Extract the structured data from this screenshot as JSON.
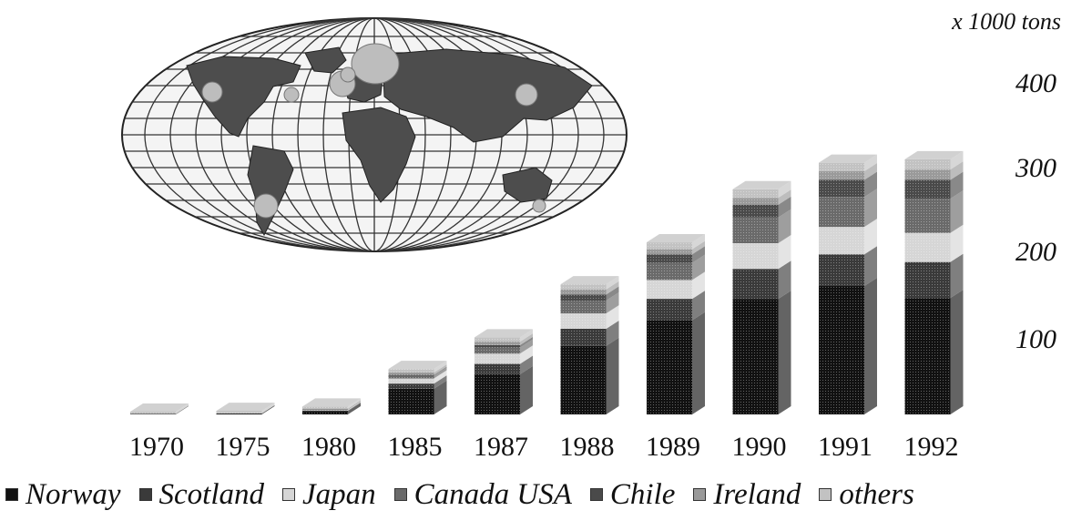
{
  "chart_data": {
    "type": "bar",
    "stacked": true,
    "unit_label": "x 1000 tons",
    "categories": [
      "1970",
      "1975",
      "1980",
      "1985",
      "1987",
      "1988",
      "1989",
      "1990",
      "1991",
      "1992"
    ],
    "y_ticks": [
      "100",
      "200",
      "300",
      "400"
    ],
    "ylim": [
      0,
      400
    ],
    "series": [
      {
        "name": "Norway",
        "color": "#111111",
        "values": [
          0.5,
          1,
          4,
          30,
          47,
          80,
          110,
          135,
          150,
          136
        ]
      },
      {
        "name": "Scotland",
        "color": "#3a3a3a",
        "values": [
          0,
          0,
          0.5,
          6,
          12,
          20,
          25,
          35,
          37,
          42
        ]
      },
      {
        "name": "Japan",
        "color": "#d6d6d6",
        "values": [
          0,
          0.5,
          1,
          6,
          12,
          18,
          22,
          30,
          32,
          34
        ]
      },
      {
        "name": "Canada USA",
        "color": "#6a6a6a",
        "values": [
          0,
          0,
          0.5,
          3,
          7,
          15,
          20,
          30,
          35,
          40
        ]
      },
      {
        "name": "Chile",
        "color": "#4a4a4a",
        "values": [
          0,
          0,
          0,
          1,
          3,
          7,
          10,
          15,
          20,
          22
        ]
      },
      {
        "name": "Ireland",
        "color": "#9a9a9a",
        "values": [
          0,
          0,
          0.5,
          3,
          4,
          6,
          6,
          8,
          10,
          12
        ]
      },
      {
        "name": "others",
        "color": "#c2c2c2",
        "values": [
          1,
          1,
          1,
          4,
          5,
          6,
          8,
          10,
          10,
          12
        ]
      }
    ],
    "legend_position": "bottom",
    "grid": false
  },
  "map": {
    "highlight_spots": 8
  }
}
